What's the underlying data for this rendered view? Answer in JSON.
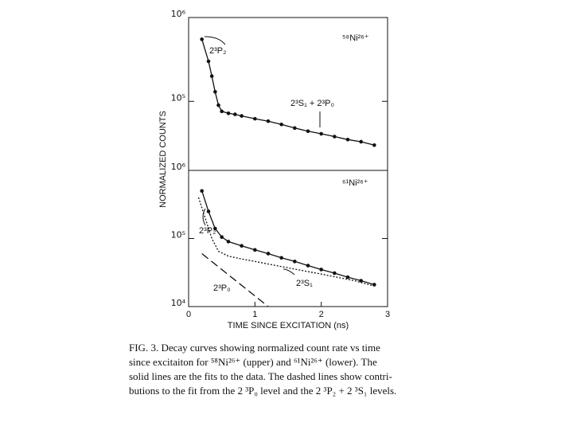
{
  "chart_data": [
    {
      "type": "line",
      "yscale": "log",
      "xlim": [
        0,
        3
      ],
      "ylim": [
        15000,
        1000000
      ],
      "yticks": [
        {
          "value": 100000,
          "label": "10⁵"
        },
        {
          "value": 1000000,
          "label": "10⁶"
        }
      ],
      "ylabel": "NORMALIZED COUNTS",
      "annotations": [
        "⁵⁸Ni²⁶⁺",
        "2³P₂",
        "2³S₁ + 2³P₀"
      ],
      "series": [
        {
          "color": "#111",
          "style": "solid-markers",
          "x": [
            0.2,
            0.3,
            0.35,
            0.4,
            0.45,
            0.5,
            0.6,
            0.7,
            0.8,
            1.0,
            1.2,
            1.4,
            1.6,
            1.8,
            2.0,
            2.2,
            2.4,
            2.6,
            2.8
          ],
          "values": [
            550000,
            300000,
            200000,
            130000,
            90000,
            76000,
            72000,
            70000,
            67000,
            62000,
            58000,
            53000,
            48000,
            44000,
            41000,
            38000,
            35000,
            33000,
            30000
          ]
        }
      ]
    },
    {
      "type": "line",
      "yscale": "log",
      "xlim": [
        0,
        3
      ],
      "ylim": [
        10000,
        1000000
      ],
      "xticks": [
        0,
        1,
        2,
        3
      ],
      "yticks": [
        {
          "value": 10000,
          "label": "10⁴"
        },
        {
          "value": 100000,
          "label": "10⁵"
        },
        {
          "value": 1000000,
          "label": "10⁶"
        }
      ],
      "xlabel": "TIME SINCE EXCITATION (ns)",
      "annotations": [
        "⁶¹Ni²⁶⁺",
        "2³P₂",
        "2³S₁",
        "2³P₀"
      ],
      "series": [
        {
          "color": "#111",
          "style": "solid-markers",
          "x": [
            0.2,
            0.3,
            0.4,
            0.5,
            0.6,
            0.8,
            1.0,
            1.2,
            1.4,
            1.6,
            1.8,
            2.0,
            2.2,
            2.4,
            2.6,
            2.8
          ],
          "values": [
            500000,
            250000,
            140000,
            105000,
            90000,
            78000,
            68000,
            60000,
            52000,
            46000,
            40000,
            35000,
            31000,
            27000,
            24000,
            21000
          ]
        },
        {
          "color": "#111",
          "style": "dotted",
          "x": [
            0.15,
            0.25,
            0.35,
            0.45,
            0.6,
            0.8,
            1.0,
            1.5,
            2.0,
            2.5,
            2.8
          ],
          "values": [
            400000,
            200000,
            100000,
            65000,
            55000,
            50000,
            46000,
            37000,
            30000,
            24000,
            20000
          ]
        },
        {
          "color": "#111",
          "style": "dashed",
          "x": [
            0.2,
            1.2
          ],
          "values": [
            60000,
            10000
          ]
        }
      ]
    }
  ],
  "caption": [
    "FIG. 3.  Decay curves showing normalized count rate vs time",
    "since excitaiton for ⁵⁸Ni²⁶⁺ (upper) and ⁶¹Ni²⁶⁺ (lower).  The",
    "solid lines are the fits to the data.  The dashed lines show contri-",
    "butions to the fit from the 2 ³P₀ level and the 2 ³P₂ + 2 ³S₁ levels."
  ]
}
